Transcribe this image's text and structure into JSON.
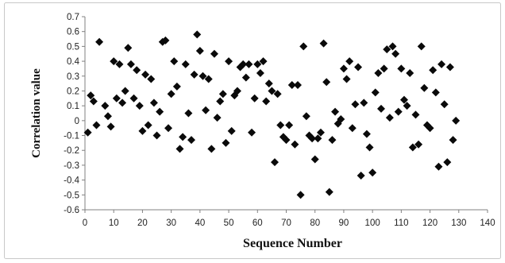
{
  "chart_data": {
    "type": "scatter",
    "xlabel": "Sequence Number",
    "ylabel": "Correlation value",
    "xlim": [
      0,
      140
    ],
    "ylim": [
      -0.6,
      0.7
    ],
    "x_ticks": [
      0,
      10,
      20,
      30,
      40,
      50,
      60,
      70,
      80,
      90,
      100,
      110,
      120,
      130,
      140
    ],
    "y_ticks": [
      0.7,
      0.6,
      0.5,
      0.4,
      0.3,
      0.2,
      0.1,
      0,
      -0.1,
      -0.2,
      -0.3,
      -0.4,
      -0.5,
      -0.6
    ],
    "grid": false,
    "legend": "none",
    "marker": "diamond",
    "marker_color": "#0a0a0a",
    "series": [
      {
        "points": [
          [
            1,
            -0.08
          ],
          [
            2,
            0.17
          ],
          [
            3,
            0.13
          ],
          [
            4,
            -0.03
          ],
          [
            5,
            0.53
          ],
          [
            7,
            0.1
          ],
          [
            8,
            0.03
          ],
          [
            9,
            -0.04
          ],
          [
            10,
            0.4
          ],
          [
            11,
            0.15
          ],
          [
            12,
            0.38
          ],
          [
            13,
            0.12
          ],
          [
            14,
            0.2
          ],
          [
            15,
            0.49
          ],
          [
            16,
            0.38
          ],
          [
            17,
            0.15
          ],
          [
            18,
            0.34
          ],
          [
            19,
            0.1
          ],
          [
            20,
            -0.07
          ],
          [
            21,
            0.31
          ],
          [
            22,
            -0.03
          ],
          [
            23,
            0.28
          ],
          [
            24,
            0.12
          ],
          [
            25,
            -0.1
          ],
          [
            26,
            0.06
          ],
          [
            27,
            0.53
          ],
          [
            28,
            0.54
          ],
          [
            29,
            -0.05
          ],
          [
            30,
            0.18
          ],
          [
            31,
            0.4
          ],
          [
            32,
            0.23
          ],
          [
            33,
            -0.19
          ],
          [
            34,
            -0.11
          ],
          [
            35,
            0.38
          ],
          [
            36,
            0.05
          ],
          [
            37,
            -0.13
          ],
          [
            38,
            0.31
          ],
          [
            39,
            0.58
          ],
          [
            40,
            0.47
          ],
          [
            41,
            0.3
          ],
          [
            42,
            0.07
          ],
          [
            43,
            0.28
          ],
          [
            44,
            -0.19
          ],
          [
            45,
            0.45
          ],
          [
            46,
            0.02
          ],
          [
            47,
            0.13
          ],
          [
            48,
            0.18
          ],
          [
            49,
            -0.15
          ],
          [
            50,
            0.4
          ],
          [
            51,
            -0.07
          ],
          [
            52,
            0.17
          ],
          [
            53,
            0.2
          ],
          [
            54,
            0.36
          ],
          [
            55,
            0.38
          ],
          [
            56,
            0.29
          ],
          [
            57,
            0.38
          ],
          [
            58,
            -0.08
          ],
          [
            59,
            0.15
          ],
          [
            60,
            0.38
          ],
          [
            61,
            0.32
          ],
          [
            62,
            0.4
          ],
          [
            63,
            0.13
          ],
          [
            64,
            0.25
          ],
          [
            65,
            0.2
          ],
          [
            66,
            -0.28
          ],
          [
            67,
            0.18
          ],
          [
            68,
            -0.03
          ],
          [
            69,
            -0.11
          ],
          [
            70,
            -0.13
          ],
          [
            71,
            -0.03
          ],
          [
            72,
            0.24
          ],
          [
            73,
            -0.16
          ],
          [
            74,
            0.24
          ],
          [
            75,
            -0.5
          ],
          [
            76,
            0.5
          ],
          [
            77,
            0.03
          ],
          [
            78,
            -0.1
          ],
          [
            79,
            -0.12
          ],
          [
            80,
            -0.26
          ],
          [
            81,
            -0.12
          ],
          [
            82,
            -0.08
          ],
          [
            83,
            0.52
          ],
          [
            84,
            0.26
          ],
          [
            85,
            -0.48
          ],
          [
            86,
            -0.13
          ],
          [
            87,
            0.06
          ],
          [
            88,
            -0.02
          ],
          [
            89,
            0.01
          ],
          [
            90,
            0.35
          ],
          [
            91,
            0.28
          ],
          [
            92,
            0.4
          ],
          [
            93,
            -0.05
          ],
          [
            94,
            0.11
          ],
          [
            95,
            0.36
          ],
          [
            96,
            -0.37
          ],
          [
            97,
            0.12
          ],
          [
            98,
            -0.09
          ],
          [
            99,
            -0.18
          ],
          [
            100,
            -0.35
          ],
          [
            101,
            0.19
          ],
          [
            102,
            0.32
          ],
          [
            103,
            0.08
          ],
          [
            104,
            0.35
          ],
          [
            105,
            0.48
          ],
          [
            106,
            0.02
          ],
          [
            107,
            0.5
          ],
          [
            108,
            0.45
          ],
          [
            109,
            0.06
          ],
          [
            110,
            0.35
          ],
          [
            111,
            0.14
          ],
          [
            112,
            0.1
          ],
          [
            113,
            0.32
          ],
          [
            114,
            -0.18
          ],
          [
            115,
            0.04
          ],
          [
            116,
            -0.16
          ],
          [
            117,
            0.5
          ],
          [
            118,
            0.22
          ],
          [
            119,
            -0.03
          ],
          [
            120,
            -0.05
          ],
          [
            121,
            0.34
          ],
          [
            122,
            0.19
          ],
          [
            123,
            -0.31
          ],
          [
            124,
            0.38
          ],
          [
            125,
            0.11
          ],
          [
            126,
            -0.28
          ],
          [
            127,
            0.36
          ],
          [
            128,
            -0.13
          ],
          [
            129,
            0.0
          ]
        ]
      }
    ]
  }
}
